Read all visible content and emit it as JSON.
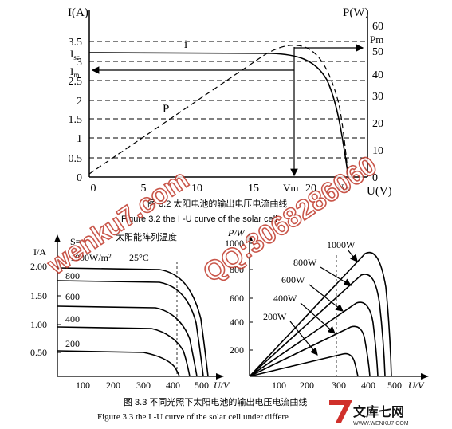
{
  "fig1": {
    "ylabel_left": "I(A)",
    "ylabel_right": "P(W)",
    "xlabel": "U(V)",
    "left_ticks": [
      "0",
      "0.5",
      "1",
      "1.5",
      "2",
      "2.5",
      "3",
      "3.5"
    ],
    "right_ticks": [
      "0",
      "10",
      "20",
      "30",
      "40",
      "50",
      "60"
    ],
    "x_ticks": [
      "0",
      "5",
      "10",
      "15",
      "20"
    ],
    "label_isc": "I",
    "label_isc_sub": "sc",
    "label_im": "I",
    "label_im_sub": "m",
    "label_pm": "Pm",
    "label_vm": "Vm",
    "label_voc": "Voc",
    "label_i": "i",
    "label_p": "P",
    "caption_cn": "图 3.2 太阳电池的输出电压电流曲线",
    "caption_en": "Figure 3.2 the I  -U  curve of the solar cell"
  },
  "fig2": {
    "ylabel": "I/A",
    "xlabel": "U/V",
    "y_ticks": [
      "0.50",
      "1.00",
      "1.50",
      "2.00"
    ],
    "x_ticks": [
      "100",
      "200",
      "300",
      "400",
      "500"
    ],
    "s_label": "S=",
    "s_value": "1000W/m²",
    "temp": "25°C",
    "temp_title": "太阳能阵列温度",
    "curve_labels": [
      "800",
      "600",
      "400",
      "200"
    ]
  },
  "fig3": {
    "ylabel": "P/W",
    "xlabel": "U/V",
    "y_ticks": [
      "200",
      "400",
      "600",
      "800",
      "1000"
    ],
    "x_ticks": [
      "100",
      "200",
      "300",
      "400",
      "500"
    ],
    "series_labels": [
      "1000W",
      "800W",
      "600W",
      "400W",
      "200W"
    ]
  },
  "caption2_cn": "图 3.3 不同光照下太阳电池的输出电压电流曲线",
  "caption2_en": "Figure 3.3 the I  -U  curve of the solar cell under differe",
  "watermark": "wenku7.com",
  "watermark_qq": "QQ:3068286060",
  "logo_cn": "文库七网",
  "logo_url": "WWW.WENKU7.COM"
}
